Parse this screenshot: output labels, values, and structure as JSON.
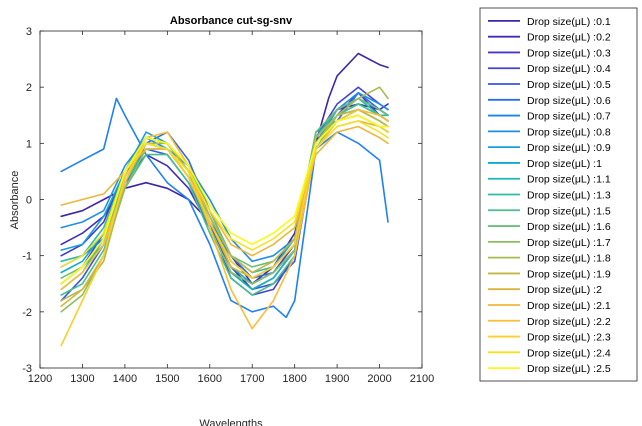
{
  "chart_data": {
    "type": "line",
    "title": "Absorbance cut-sg-snv",
    "xlabel": "Wavelengths",
    "ylabel": "Absorbance",
    "xlim": [
      1200,
      2100
    ],
    "ylim": [
      -3,
      3
    ],
    "xticks": [
      "1200",
      "1300",
      "1400",
      "1500",
      "1600",
      "1700",
      "1800",
      "1900",
      "2000",
      "2100"
    ],
    "yticks": [
      "-3",
      "-2",
      "-1",
      "0",
      "1",
      "2",
      "3"
    ],
    "grid": false,
    "legend_position": "outside-right",
    "series": [
      {
        "name": "Drop size(μL) :0.1",
        "color": "#3e26a8",
        "x": [
          1250,
          1300,
          1350,
          1400,
          1450,
          1500,
          1550,
          1600,
          1650,
          1700,
          1750,
          1800,
          1850,
          1880,
          1900,
          1950,
          2000,
          2020
        ],
        "y": [
          -0.3,
          -0.2,
          0.0,
          0.2,
          0.3,
          0.2,
          0.0,
          -0.4,
          -1.0,
          -1.5,
          -1.2,
          -0.6,
          1.0,
          1.8,
          2.2,
          2.6,
          2.4,
          2.35
        ]
      },
      {
        "name": "Drop size(μL) :0.2",
        "color": "#402fb8",
        "x": [
          1250,
          1300,
          1350,
          1400,
          1450,
          1500,
          1550,
          1600,
          1650,
          1700,
          1750,
          1800,
          1850,
          1900,
          1950,
          2000,
          2020
        ],
        "y": [
          -0.8,
          -0.6,
          -0.3,
          0.3,
          0.8,
          0.6,
          0.2,
          -0.5,
          -1.2,
          -1.6,
          -1.4,
          -0.9,
          1.1,
          1.6,
          1.7,
          1.6,
          1.7
        ]
      },
      {
        "name": "Drop size(μL) :0.3",
        "color": "#4538c8",
        "x": [
          1250,
          1300,
          1350,
          1400,
          1450,
          1500,
          1550,
          1600,
          1650,
          1700,
          1750,
          1800,
          1850,
          1900,
          1950,
          2000,
          2020
        ],
        "y": [
          -1.0,
          -0.8,
          -0.4,
          0.5,
          1.0,
          0.9,
          0.4,
          -0.5,
          -1.3,
          -1.5,
          -1.3,
          -0.8,
          1.0,
          1.5,
          1.9,
          1.5,
          1.4
        ]
      },
      {
        "name": "Drop size(μL) :0.4",
        "color": "#4542d8",
        "x": [
          1250,
          1300,
          1350,
          1400,
          1450,
          1500,
          1550,
          1600,
          1650,
          1700,
          1750,
          1800,
          1850,
          1900,
          1950,
          2000,
          2020
        ],
        "y": [
          -1.5,
          -1.2,
          -0.6,
          0.4,
          1.1,
          1.0,
          0.5,
          -0.4,
          -1.4,
          -1.7,
          -1.6,
          -1.0,
          1.1,
          1.7,
          2.0,
          1.7,
          1.6
        ]
      },
      {
        "name": "Drop size(μL) :0.5",
        "color": "#3a55e6",
        "x": [
          1250,
          1300,
          1350,
          1400,
          1450,
          1500,
          1550,
          1600,
          1650,
          1700,
          1750,
          1800,
          1850,
          1900,
          1950,
          2000,
          2020
        ],
        "y": [
          -1.8,
          -1.4,
          -0.8,
          0.3,
          0.9,
          0.8,
          0.3,
          -0.5,
          -1.3,
          -1.6,
          -1.5,
          -1.1,
          1.0,
          1.6,
          1.8,
          1.6,
          1.5
        ]
      },
      {
        "name": "Drop size(μL) :0.6",
        "color": "#2d6af0",
        "x": [
          1250,
          1300,
          1350,
          1400,
          1450,
          1500,
          1550,
          1600,
          1650,
          1700,
          1750,
          1800,
          1850,
          1900,
          1950,
          2000,
          2020
        ],
        "y": [
          -1.2,
          -1.0,
          -0.7,
          0.2,
          1.0,
          1.2,
          0.7,
          -0.2,
          -1.0,
          -1.4,
          -1.3,
          -0.9,
          0.9,
          1.4,
          1.9,
          1.6,
          1.5
        ]
      },
      {
        "name": "Drop size(μL) :0.7",
        "color": "#2080f5",
        "x": [
          1250,
          1300,
          1350,
          1380,
          1400,
          1450,
          1500,
          1550,
          1600,
          1650,
          1700,
          1750,
          1780,
          1800,
          1850,
          1900,
          1950,
          2000,
          2020
        ],
        "y": [
          0.5,
          0.7,
          0.9,
          1.8,
          1.5,
          0.8,
          0.3,
          0.0,
          -0.8,
          -1.8,
          -2.0,
          -1.9,
          -2.1,
          -1.8,
          0.9,
          1.2,
          1.0,
          0.7,
          -0.4
        ]
      },
      {
        "name": "Drop size(μL) :0.8",
        "color": "#1f8fe6",
        "x": [
          1250,
          1300,
          1350,
          1400,
          1450,
          1500,
          1550,
          1600,
          1650,
          1700,
          1750,
          1800,
          1850,
          1900,
          1950,
          2000,
          2020
        ],
        "y": [
          -0.5,
          -0.4,
          -0.2,
          0.6,
          1.1,
          0.9,
          0.6,
          0.0,
          -0.7,
          -1.1,
          -1.0,
          -0.7,
          1.0,
          1.6,
          1.9,
          1.7,
          1.6
        ]
      },
      {
        "name": "Drop size(μL) :0.9",
        "color": "#17a0d8",
        "x": [
          1250,
          1300,
          1350,
          1400,
          1450,
          1500,
          1550,
          1600,
          1650,
          1700,
          1750,
          1800,
          1850,
          1900,
          1950,
          2000,
          2020
        ],
        "y": [
          -0.9,
          -0.8,
          -0.3,
          0.5,
          1.2,
          1.0,
          0.5,
          -0.3,
          -1.1,
          -1.4,
          -1.2,
          -0.7,
          1.2,
          1.4,
          1.5,
          1.3,
          1.2
        ]
      },
      {
        "name": "Drop size(μL) :1",
        "color": "#0bafc9",
        "x": [
          1250,
          1300,
          1350,
          1400,
          1450,
          1500,
          1550,
          1600,
          1650,
          1700,
          1750,
          1800,
          1850,
          1900,
          1950,
          2000,
          2020
        ],
        "y": [
          -1.3,
          -1.1,
          -0.6,
          0.4,
          1.0,
          0.9,
          0.4,
          -0.4,
          -1.2,
          -1.5,
          -1.3,
          -0.9,
          1.1,
          1.5,
          1.6,
          1.4,
          1.3
        ]
      },
      {
        "name": "Drop size(μL) :1.1",
        "color": "#1bb7b7",
        "x": [
          1250,
          1300,
          1350,
          1400,
          1450,
          1500,
          1550,
          1600,
          1650,
          1700,
          1750,
          1800,
          1850,
          1900,
          1950,
          2000,
          2020
        ],
        "y": [
          -1.6,
          -1.3,
          -0.7,
          0.3,
          0.9,
          0.9,
          0.4,
          -0.5,
          -1.3,
          -1.6,
          -1.4,
          -0.9,
          1.0,
          1.5,
          1.7,
          1.5,
          1.4
        ]
      },
      {
        "name": "Drop size(μL) :1.3",
        "color": "#2dbca4",
        "x": [
          1250,
          1300,
          1350,
          1400,
          1450,
          1500,
          1550,
          1600,
          1650,
          1700,
          1750,
          1800,
          1850,
          1900,
          1950,
          2000,
          2020
        ],
        "y": [
          -1.1,
          -1.0,
          -0.5,
          0.5,
          1.1,
          1.0,
          0.5,
          -0.3,
          -1.0,
          -1.3,
          -1.2,
          -0.8,
          1.1,
          1.6,
          1.8,
          1.5,
          1.5
        ]
      },
      {
        "name": "Drop size(μL) :1.5",
        "color": "#48bf8e",
        "x": [
          1250,
          1300,
          1350,
          1400,
          1450,
          1500,
          1550,
          1600,
          1650,
          1700,
          1750,
          1800,
          1850,
          1900,
          1950,
          2000,
          2020
        ],
        "y": [
          -1.7,
          -1.5,
          -0.9,
          0.2,
          0.8,
          0.8,
          0.3,
          -0.6,
          -1.4,
          -1.7,
          -1.5,
          -1.0,
          0.9,
          1.5,
          1.7,
          1.5,
          1.4
        ]
      },
      {
        "name": "Drop size(μL) :1.6",
        "color": "#6abf78",
        "x": [
          1250,
          1300,
          1350,
          1400,
          1450,
          1500,
          1550,
          1600,
          1650,
          1700,
          1750,
          1800,
          1850,
          1900,
          1950,
          2000,
          2020
        ],
        "y": [
          -1.4,
          -1.2,
          -0.8,
          0.4,
          1.0,
          1.0,
          0.6,
          -0.2,
          -1.0,
          -1.2,
          -1.1,
          -0.7,
          1.2,
          1.6,
          1.8,
          1.6,
          1.5
        ]
      },
      {
        "name": "Drop size(μL) :1.7",
        "color": "#8bbe62",
        "x": [
          1250,
          1300,
          1350,
          1400,
          1450,
          1500,
          1550,
          1600,
          1650,
          1700,
          1750,
          1800,
          1850,
          1900,
          1950,
          2000,
          2020
        ],
        "y": [
          -2.0,
          -1.7,
          -1.0,
          0.2,
          0.9,
          0.9,
          0.4,
          -0.5,
          -1.3,
          -1.5,
          -1.3,
          -0.9,
          1.0,
          1.4,
          1.6,
          1.4,
          1.3
        ]
      },
      {
        "name": "Drop size(μL) :1.8",
        "color": "#a8bb50",
        "x": [
          1250,
          1300,
          1350,
          1400,
          1450,
          1500,
          1550,
          1600,
          1650,
          1700,
          1750,
          1800,
          1850,
          1900,
          1950,
          2000,
          2020
        ],
        "y": [
          -1.8,
          -1.6,
          -1.1,
          0.3,
          1.0,
          1.0,
          0.5,
          -0.4,
          -1.1,
          -1.4,
          -1.2,
          -0.8,
          1.0,
          1.5,
          1.8,
          2.0,
          1.8
        ]
      },
      {
        "name": "Drop size(μL) :1.9",
        "color": "#c3b845",
        "x": [
          1250,
          1300,
          1350,
          1400,
          1450,
          1500,
          1550,
          1600,
          1650,
          1700,
          1750,
          1800,
          1850,
          1900,
          1950,
          2000,
          2020
        ],
        "y": [
          -1.5,
          -1.2,
          -0.7,
          0.5,
          1.1,
          1.0,
          0.5,
          -0.3,
          -1.0,
          -1.3,
          -1.1,
          -0.7,
          1.1,
          1.5,
          1.6,
          1.4,
          1.3
        ]
      },
      {
        "name": "Drop size(μL) :2",
        "color": "#dbb43f",
        "x": [
          1250,
          1300,
          1350,
          1400,
          1450,
          1500,
          1550,
          1600,
          1650,
          1700,
          1750,
          1800,
          1850,
          1900,
          1950,
          2000,
          2020
        ],
        "y": [
          -1.9,
          -1.6,
          -1.0,
          0.4,
          1.0,
          0.9,
          0.4,
          -0.4,
          -1.2,
          -1.4,
          -1.2,
          -0.8,
          0.9,
          1.3,
          1.4,
          1.3,
          1.2
        ]
      },
      {
        "name": "Drop size(μL) :2.1",
        "color": "#efb63a",
        "x": [
          1250,
          1300,
          1350,
          1400,
          1450,
          1500,
          1550,
          1600,
          1650,
          1700,
          1750,
          1800,
          1850,
          1900,
          1950,
          2000,
          2020
        ],
        "y": [
          -0.1,
          0.0,
          0.1,
          0.5,
          0.9,
          0.9,
          0.4,
          -0.2,
          -0.8,
          -1.0,
          -0.8,
          -0.5,
          0.8,
          1.2,
          1.3,
          1.1,
          1.0
        ]
      },
      {
        "name": "Drop size(μL) :2.2",
        "color": "#fbbe35",
        "x": [
          1250,
          1300,
          1350,
          1400,
          1450,
          1500,
          1550,
          1600,
          1650,
          1700,
          1750,
          1800,
          1850,
          1900,
          1950,
          2000,
          2020
        ],
        "y": [
          -1.6,
          -1.3,
          -0.8,
          0.3,
          1.1,
          1.2,
          0.6,
          -0.5,
          -1.6,
          -2.3,
          -1.8,
          -1.0,
          0.9,
          1.4,
          1.6,
          1.5,
          1.4
        ]
      },
      {
        "name": "Drop size(μL) :2.3",
        "color": "#fbcf2b",
        "x": [
          1250,
          1300,
          1350,
          1400,
          1450,
          1500,
          1550,
          1600,
          1650,
          1700,
          1750,
          1800,
          1850,
          1900,
          1950,
          2000,
          2020
        ],
        "y": [
          -2.6,
          -1.8,
          -1.0,
          0.4,
          1.0,
          0.9,
          0.4,
          -0.4,
          -1.1,
          -1.4,
          -1.2,
          -0.8,
          1.0,
          1.4,
          1.5,
          1.3,
          1.2
        ]
      },
      {
        "name": "Drop size(μL) :2.4",
        "color": "#f5e21f",
        "x": [
          1250,
          1300,
          1350,
          1400,
          1450,
          1500,
          1550,
          1600,
          1650,
          1700,
          1750,
          1800,
          1850,
          1900,
          1950,
          2000,
          2020
        ],
        "y": [
          -1.2,
          -1.0,
          -0.6,
          0.5,
          1.0,
          0.9,
          0.5,
          -0.2,
          -0.7,
          -0.9,
          -0.7,
          -0.4,
          0.9,
          1.3,
          1.4,
          1.2,
          1.1
        ]
      },
      {
        "name": "Drop size(μL) :2.5",
        "color": "#f9fb15",
        "x": [
          1250,
          1300,
          1350,
          1400,
          1450,
          1500,
          1550,
          1600,
          1650,
          1700,
          1750,
          1800,
          1850,
          1900,
          1950,
          2000,
          2020
        ],
        "y": [
          -1.5,
          -1.2,
          -0.7,
          0.5,
          1.1,
          1.0,
          0.6,
          -0.1,
          -0.6,
          -0.8,
          -0.6,
          -0.3,
          1.0,
          1.4,
          1.5,
          1.3,
          1.3
        ]
      }
    ]
  }
}
